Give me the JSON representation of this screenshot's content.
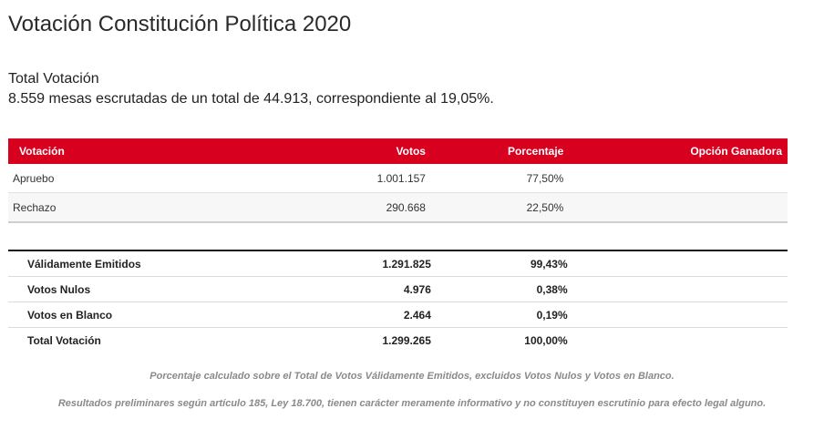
{
  "title": "Votación Constitución Política 2020",
  "section_title": "Total Votación",
  "summary": "8.559 mesas escrutadas de un total de 44.913, correspondiente al 19,05%.",
  "results": {
    "headers": [
      "Votación",
      "Votos",
      "Porcentaje",
      "Opción Ganadora"
    ],
    "rows": [
      {
        "option": "Apruebo",
        "votes": "1.001.157",
        "percent": "77,50%",
        "winner": ""
      },
      {
        "option": "Rechazo",
        "votes": "290.668",
        "percent": "22,50%",
        "winner": ""
      }
    ]
  },
  "totals": {
    "rows": [
      {
        "label": "Válidamente Emitidos",
        "votes": "1.291.825",
        "percent": "99,43%"
      },
      {
        "label": "Votos Nulos",
        "votes": "4.976",
        "percent": "0,38%"
      },
      {
        "label": "Votos en Blanco",
        "votes": "2.464",
        "percent": "0,19%"
      },
      {
        "label": "Total Votación",
        "votes": "1.299.265",
        "percent": "100,00%"
      }
    ]
  },
  "notes": [
    "Porcentaje calculado sobre el Total de Votos Válidamente Emitidos, excluidos Votos Nulos y Votos en Blanco.",
    "Resultados preliminares según artículo 185, Ley 18.700, tienen carácter meramente informativo y no constituyen escrutinio para efecto legal alguno."
  ],
  "colors": {
    "header_bg": "#d7001f",
    "header_text": "#ffffff"
  }
}
